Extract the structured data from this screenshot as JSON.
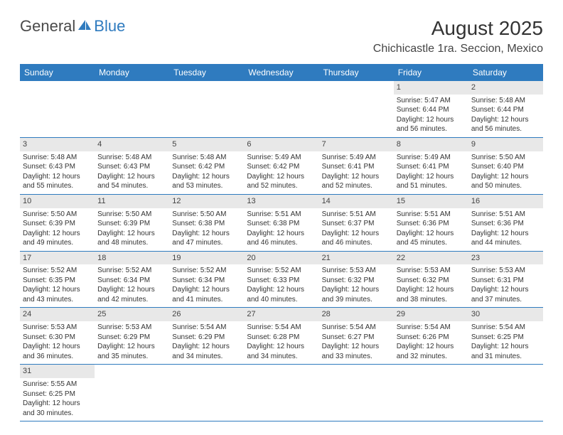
{
  "logo": {
    "text_general": "General",
    "text_blue": "Blue"
  },
  "title": "August 2025",
  "location": "Chichicastle 1ra. Seccion, Mexico",
  "colors": {
    "header_bg": "#2f7bbf",
    "header_text": "#ffffff",
    "daynum_bg": "#e8e8e8",
    "row_border": "#2f7bbf",
    "body_text": "#333333",
    "page_bg": "#ffffff"
  },
  "fonts": {
    "title_size": 28,
    "location_size": 16,
    "header_size": 12,
    "cell_size": 10
  },
  "day_headers": [
    "Sunday",
    "Monday",
    "Tuesday",
    "Wednesday",
    "Thursday",
    "Friday",
    "Saturday"
  ],
  "weeks": [
    [
      null,
      null,
      null,
      null,
      null,
      {
        "n": "1",
        "sunrise": "Sunrise: 5:47 AM",
        "sunset": "Sunset: 6:44 PM",
        "daylight": "Daylight: 12 hours and 56 minutes."
      },
      {
        "n": "2",
        "sunrise": "Sunrise: 5:48 AM",
        "sunset": "Sunset: 6:44 PM",
        "daylight": "Daylight: 12 hours and 56 minutes."
      }
    ],
    [
      {
        "n": "3",
        "sunrise": "Sunrise: 5:48 AM",
        "sunset": "Sunset: 6:43 PM",
        "daylight": "Daylight: 12 hours and 55 minutes."
      },
      {
        "n": "4",
        "sunrise": "Sunrise: 5:48 AM",
        "sunset": "Sunset: 6:43 PM",
        "daylight": "Daylight: 12 hours and 54 minutes."
      },
      {
        "n": "5",
        "sunrise": "Sunrise: 5:48 AM",
        "sunset": "Sunset: 6:42 PM",
        "daylight": "Daylight: 12 hours and 53 minutes."
      },
      {
        "n": "6",
        "sunrise": "Sunrise: 5:49 AM",
        "sunset": "Sunset: 6:42 PM",
        "daylight": "Daylight: 12 hours and 52 minutes."
      },
      {
        "n": "7",
        "sunrise": "Sunrise: 5:49 AM",
        "sunset": "Sunset: 6:41 PM",
        "daylight": "Daylight: 12 hours and 52 minutes."
      },
      {
        "n": "8",
        "sunrise": "Sunrise: 5:49 AM",
        "sunset": "Sunset: 6:41 PM",
        "daylight": "Daylight: 12 hours and 51 minutes."
      },
      {
        "n": "9",
        "sunrise": "Sunrise: 5:50 AM",
        "sunset": "Sunset: 6:40 PM",
        "daylight": "Daylight: 12 hours and 50 minutes."
      }
    ],
    [
      {
        "n": "10",
        "sunrise": "Sunrise: 5:50 AM",
        "sunset": "Sunset: 6:39 PM",
        "daylight": "Daylight: 12 hours and 49 minutes."
      },
      {
        "n": "11",
        "sunrise": "Sunrise: 5:50 AM",
        "sunset": "Sunset: 6:39 PM",
        "daylight": "Daylight: 12 hours and 48 minutes."
      },
      {
        "n": "12",
        "sunrise": "Sunrise: 5:50 AM",
        "sunset": "Sunset: 6:38 PM",
        "daylight": "Daylight: 12 hours and 47 minutes."
      },
      {
        "n": "13",
        "sunrise": "Sunrise: 5:51 AM",
        "sunset": "Sunset: 6:38 PM",
        "daylight": "Daylight: 12 hours and 46 minutes."
      },
      {
        "n": "14",
        "sunrise": "Sunrise: 5:51 AM",
        "sunset": "Sunset: 6:37 PM",
        "daylight": "Daylight: 12 hours and 46 minutes."
      },
      {
        "n": "15",
        "sunrise": "Sunrise: 5:51 AM",
        "sunset": "Sunset: 6:36 PM",
        "daylight": "Daylight: 12 hours and 45 minutes."
      },
      {
        "n": "16",
        "sunrise": "Sunrise: 5:51 AM",
        "sunset": "Sunset: 6:36 PM",
        "daylight": "Daylight: 12 hours and 44 minutes."
      }
    ],
    [
      {
        "n": "17",
        "sunrise": "Sunrise: 5:52 AM",
        "sunset": "Sunset: 6:35 PM",
        "daylight": "Daylight: 12 hours and 43 minutes."
      },
      {
        "n": "18",
        "sunrise": "Sunrise: 5:52 AM",
        "sunset": "Sunset: 6:34 PM",
        "daylight": "Daylight: 12 hours and 42 minutes."
      },
      {
        "n": "19",
        "sunrise": "Sunrise: 5:52 AM",
        "sunset": "Sunset: 6:34 PM",
        "daylight": "Daylight: 12 hours and 41 minutes."
      },
      {
        "n": "20",
        "sunrise": "Sunrise: 5:52 AM",
        "sunset": "Sunset: 6:33 PM",
        "daylight": "Daylight: 12 hours and 40 minutes."
      },
      {
        "n": "21",
        "sunrise": "Sunrise: 5:53 AM",
        "sunset": "Sunset: 6:32 PM",
        "daylight": "Daylight: 12 hours and 39 minutes."
      },
      {
        "n": "22",
        "sunrise": "Sunrise: 5:53 AM",
        "sunset": "Sunset: 6:32 PM",
        "daylight": "Daylight: 12 hours and 38 minutes."
      },
      {
        "n": "23",
        "sunrise": "Sunrise: 5:53 AM",
        "sunset": "Sunset: 6:31 PM",
        "daylight": "Daylight: 12 hours and 37 minutes."
      }
    ],
    [
      {
        "n": "24",
        "sunrise": "Sunrise: 5:53 AM",
        "sunset": "Sunset: 6:30 PM",
        "daylight": "Daylight: 12 hours and 36 minutes."
      },
      {
        "n": "25",
        "sunrise": "Sunrise: 5:53 AM",
        "sunset": "Sunset: 6:29 PM",
        "daylight": "Daylight: 12 hours and 35 minutes."
      },
      {
        "n": "26",
        "sunrise": "Sunrise: 5:54 AM",
        "sunset": "Sunset: 6:29 PM",
        "daylight": "Daylight: 12 hours and 34 minutes."
      },
      {
        "n": "27",
        "sunrise": "Sunrise: 5:54 AM",
        "sunset": "Sunset: 6:28 PM",
        "daylight": "Daylight: 12 hours and 34 minutes."
      },
      {
        "n": "28",
        "sunrise": "Sunrise: 5:54 AM",
        "sunset": "Sunset: 6:27 PM",
        "daylight": "Daylight: 12 hours and 33 minutes."
      },
      {
        "n": "29",
        "sunrise": "Sunrise: 5:54 AM",
        "sunset": "Sunset: 6:26 PM",
        "daylight": "Daylight: 12 hours and 32 minutes."
      },
      {
        "n": "30",
        "sunrise": "Sunrise: 5:54 AM",
        "sunset": "Sunset: 6:25 PM",
        "daylight": "Daylight: 12 hours and 31 minutes."
      }
    ],
    [
      {
        "n": "31",
        "sunrise": "Sunrise: 5:55 AM",
        "sunset": "Sunset: 6:25 PM",
        "daylight": "Daylight: 12 hours and 30 minutes."
      },
      null,
      null,
      null,
      null,
      null,
      null
    ]
  ]
}
